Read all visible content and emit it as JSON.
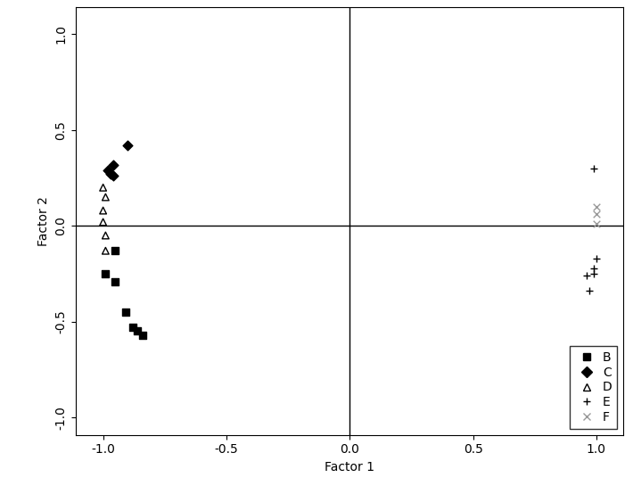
{
  "chart_data": {
    "type": "scatter",
    "x_label": "Factor 1",
    "y_label": "Factor 2",
    "xlim": [
      -1.11,
      1.11
    ],
    "ylim": [
      -1.09,
      1.14
    ],
    "xticks": [
      -1.0,
      -0.5,
      0.0,
      0.5,
      1.0
    ],
    "yticks": [
      -1.0,
      -0.5,
      0.0,
      0.5,
      1.0
    ],
    "legend": "lower right",
    "series": [
      {
        "name": "B",
        "color": "#000000",
        "marker": "square",
        "x": [
          -0.95,
          -0.99,
          -0.95,
          -0.91,
          -0.88,
          -0.86,
          -0.84
        ],
        "values": [
          -0.13,
          -0.25,
          -0.29,
          -0.45,
          -0.53,
          -0.55,
          -0.57
        ]
      },
      {
        "name": "C",
        "color": "#000000",
        "marker": "diamond",
        "x": [
          -0.9,
          -0.96,
          -0.97,
          -0.96,
          -0.98
        ],
        "values": [
          0.42,
          0.32,
          0.27,
          0.26,
          0.29
        ]
      },
      {
        "name": "D",
        "color": "#000000",
        "marker": "triangle",
        "x": [
          -1.0,
          -0.99,
          -1.0,
          -1.0,
          -0.99,
          -0.99
        ],
        "values": [
          0.2,
          0.15,
          0.08,
          0.02,
          -0.05,
          -0.13
        ]
      },
      {
        "name": "E",
        "color": "#000000",
        "marker": "plus",
        "x": [
          0.99,
          0.99,
          0.99,
          1.0,
          0.97,
          0.96
        ],
        "values": [
          0.3,
          -0.25,
          -0.22,
          -0.17,
          -0.34,
          -0.26
        ]
      },
      {
        "name": "F",
        "color": "#999999",
        "marker": "x",
        "x": [
          1.0,
          1.0,
          1.0
        ],
        "values": [
          0.1,
          0.06,
          0.01
        ]
      }
    ]
  }
}
